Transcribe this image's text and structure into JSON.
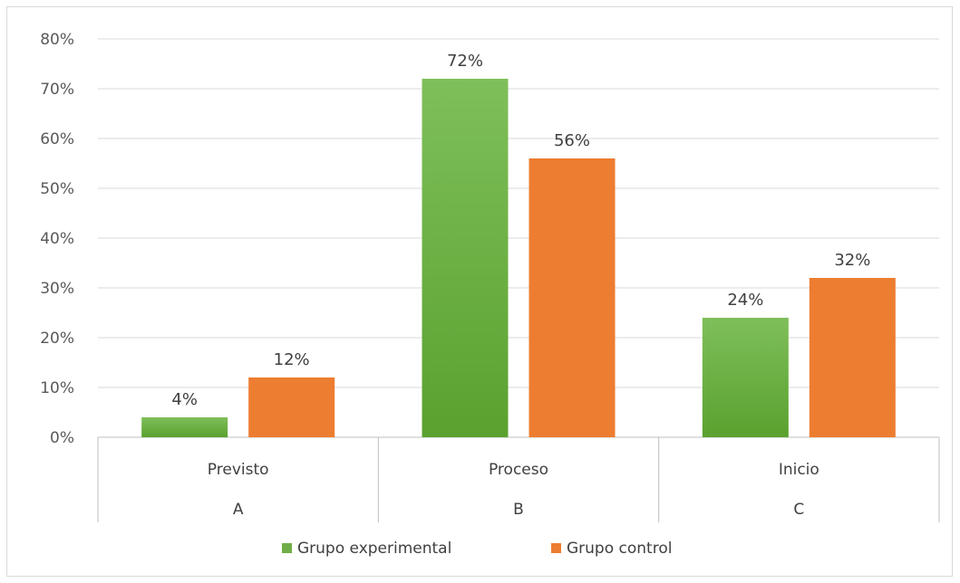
{
  "chart_data": {
    "type": "bar",
    "title": "",
    "xlabel": "",
    "ylabel": "",
    "categories": [
      "Previsto",
      "Proceso",
      "Inicio"
    ],
    "category_groups": [
      "A",
      "B",
      "C"
    ],
    "series": [
      {
        "name": "Grupo experimental",
        "values": [
          4,
          72,
          24
        ],
        "color": "#70ad47"
      },
      {
        "name": "Grupo control",
        "values": [
          12,
          56,
          32
        ],
        "color": "#ed7d31"
      }
    ],
    "value_labels": [
      [
        "4%",
        "72%",
        "24%"
      ],
      [
        "12%",
        "56%",
        "32%"
      ]
    ],
    "ylim": [
      0,
      80
    ],
    "y_ticks": [
      "0%",
      "10%",
      "20%",
      "30%",
      "40%",
      "50%",
      "60%",
      "70%",
      "80%"
    ],
    "grid": true,
    "legend_position": "bottom"
  }
}
